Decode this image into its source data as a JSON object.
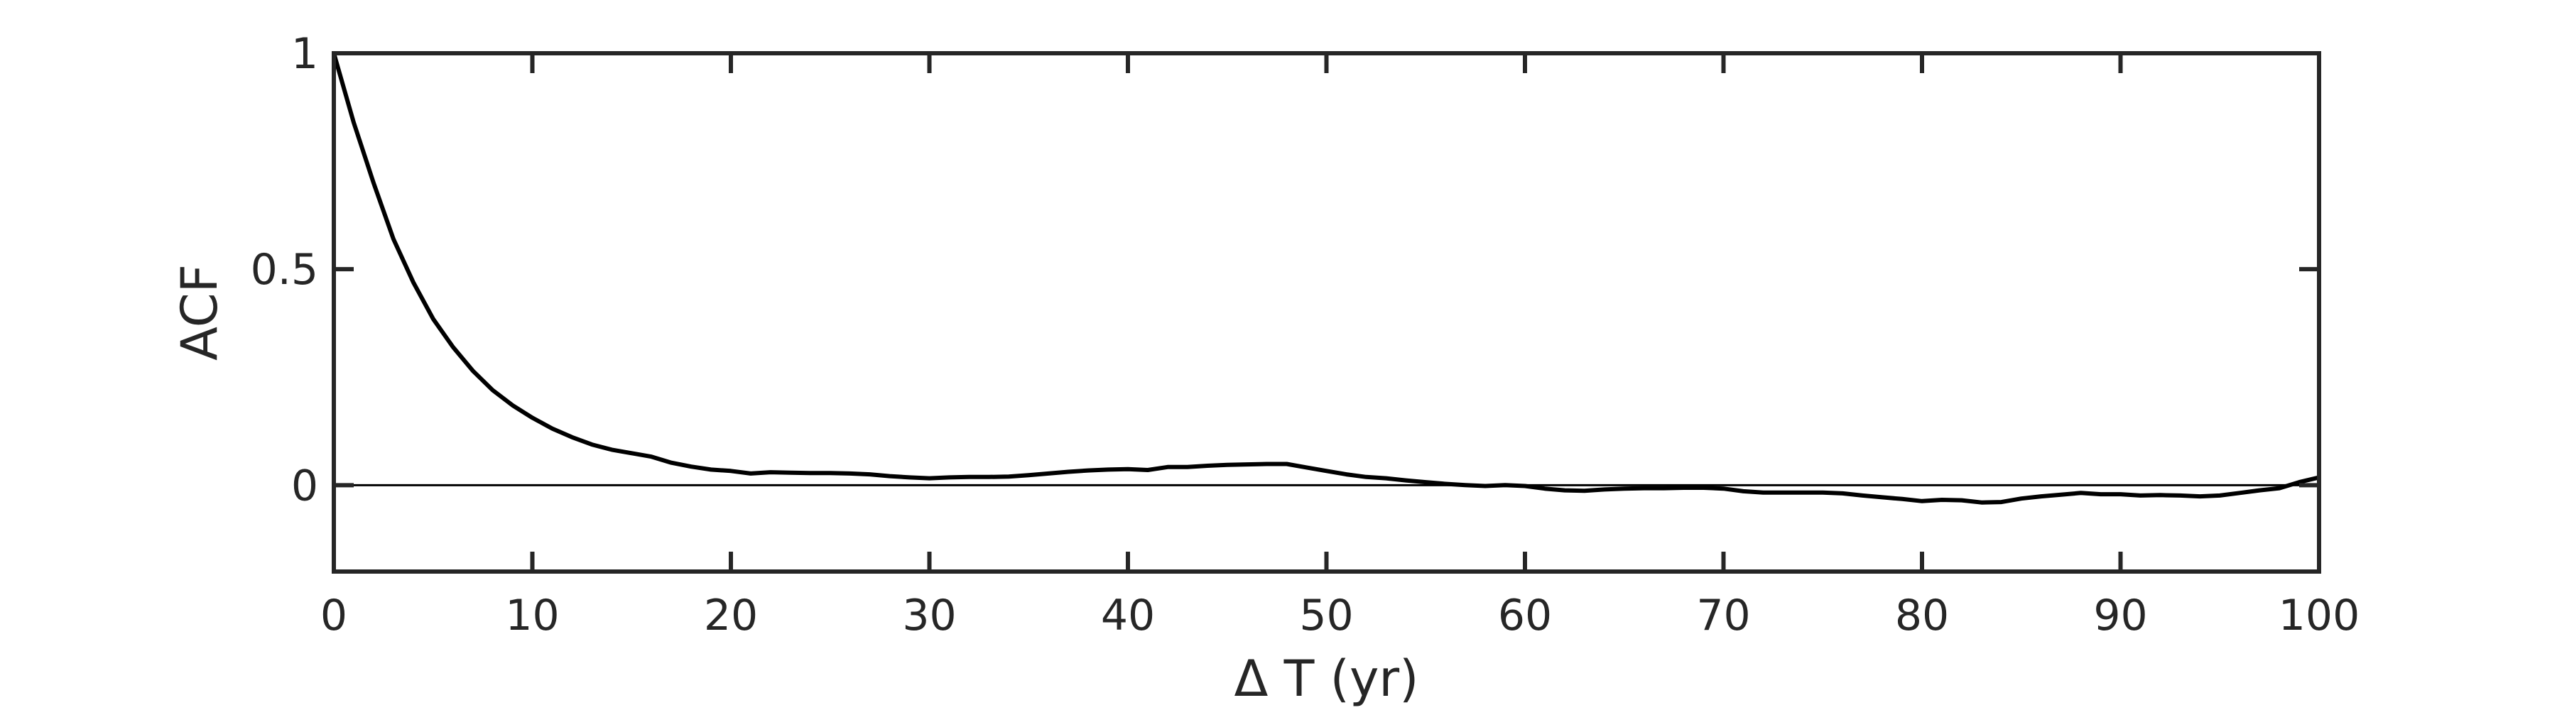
{
  "chart_data": {
    "type": "line",
    "title": "",
    "xlabel": "Δ T (yr)",
    "ylabel": "ACF",
    "xlim": [
      0,
      100
    ],
    "ylim": [
      -0.2,
      1
    ],
    "x_ticks": [
      0,
      10,
      20,
      30,
      40,
      50,
      60,
      70,
      80,
      90,
      100
    ],
    "x_tick_labels": [
      "0",
      "10",
      "20",
      "30",
      "40",
      "50",
      "60",
      "70",
      "80",
      "90",
      "100"
    ],
    "y_ticks": [
      0,
      0.5,
      1
    ],
    "y_tick_labels": [
      "0",
      "0.5",
      "1"
    ],
    "grid": false,
    "reference_line": {
      "y": 0
    },
    "colors": {
      "line": "#000000",
      "axes": "#262626"
    },
    "series": [
      {
        "x": [
          0,
          1,
          2,
          3,
          4,
          5,
          6,
          7,
          8,
          9,
          10,
          11,
          12,
          13,
          14,
          15,
          16,
          17,
          18,
          19,
          20,
          21,
          22,
          23,
          24,
          25,
          26,
          27,
          28,
          29,
          30,
          31,
          32,
          33,
          34,
          35,
          36,
          37,
          38,
          39,
          40,
          41,
          42,
          43,
          44,
          45,
          46,
          47,
          48,
          49,
          50,
          51,
          52,
          53,
          54,
          55,
          56,
          57,
          58,
          59,
          60,
          61,
          62,
          63,
          64,
          65,
          66,
          67,
          68,
          69,
          70,
          71,
          72,
          73,
          74,
          75,
          76,
          77,
          78,
          79,
          80,
          81,
          82,
          83,
          84,
          85,
          86,
          87,
          88,
          89,
          90,
          91,
          92,
          93,
          94,
          95,
          96,
          97,
          98,
          99,
          100
        ],
        "y": [
          1.0,
          0.84,
          0.7,
          0.57,
          0.47,
          0.385,
          0.32,
          0.265,
          0.22,
          0.185,
          0.156,
          0.131,
          0.111,
          0.094,
          0.082,
          0.074,
          0.066,
          0.052,
          0.043,
          0.036,
          0.033,
          0.027,
          0.03,
          0.029,
          0.028,
          0.028,
          0.027,
          0.025,
          0.021,
          0.018,
          0.016,
          0.018,
          0.019,
          0.019,
          0.02,
          0.023,
          0.027,
          0.031,
          0.034,
          0.036,
          0.037,
          0.035,
          0.042,
          0.042,
          0.045,
          0.047,
          0.048,
          0.049,
          0.049,
          0.041,
          0.033,
          0.025,
          0.019,
          0.016,
          0.011,
          0.007,
          0.003,
          0.0,
          -0.002,
          0.0,
          -0.002,
          -0.008,
          -0.012,
          -0.013,
          -0.01,
          -0.008,
          -0.007,
          -0.007,
          -0.006,
          -0.006,
          -0.008,
          -0.014,
          -0.017,
          -0.017,
          -0.017,
          -0.017,
          -0.019,
          -0.024,
          -0.028,
          -0.032,
          -0.037,
          -0.034,
          -0.035,
          -0.04,
          -0.039,
          -0.031,
          -0.026,
          -0.022,
          -0.018,
          -0.021,
          -0.021,
          -0.024,
          -0.023,
          -0.024,
          -0.026,
          -0.024,
          -0.018,
          -0.012,
          -0.007,
          0.007,
          0.018
        ]
      }
    ]
  }
}
